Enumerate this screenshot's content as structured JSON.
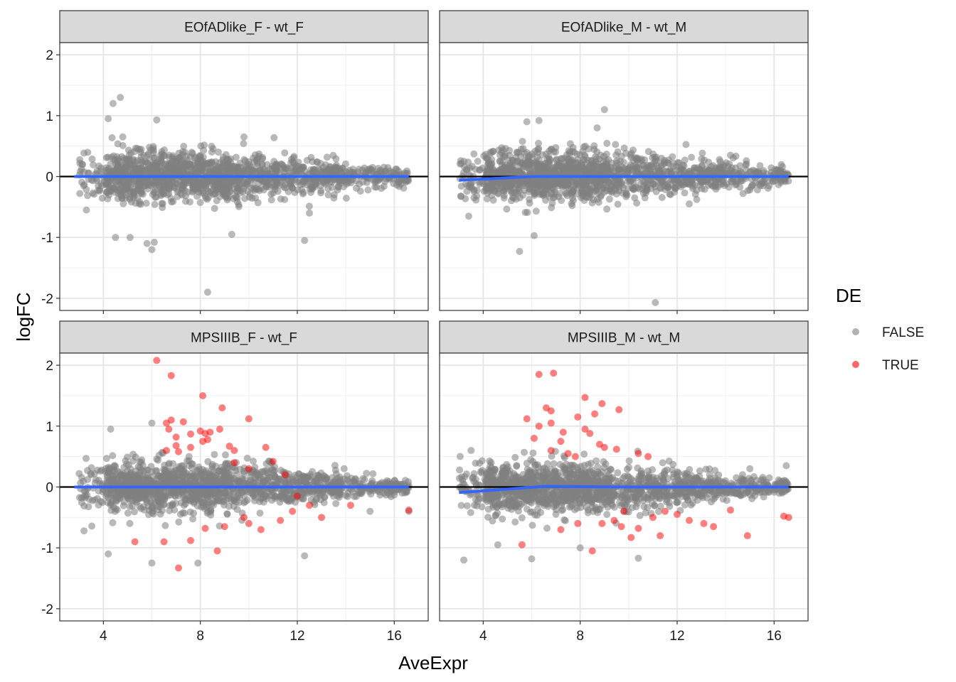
{
  "chart_data": {
    "type": "scatter",
    "layout": "facet-grid-2x2",
    "xlabel": "AveExpr",
    "ylabel": "logFC",
    "xlim": [
      2.2,
      17.4
    ],
    "ylim": [
      -2.2,
      2.2
    ],
    "x_ticks": [
      4,
      8,
      12,
      16
    ],
    "y_ticks": [
      -2,
      -1,
      0,
      1,
      2
    ],
    "x_tick_labels": [
      "4",
      "8",
      "12",
      "16"
    ],
    "y_tick_labels": [
      "-2",
      "-1",
      "0",
      "1",
      "2"
    ],
    "hline": 0,
    "smooth_color": "#3366ff",
    "legend": {
      "title": "DE",
      "entries": [
        {
          "label": "FALSE",
          "color": "#7f7f7f"
        },
        {
          "label": "TRUE",
          "color": "#ff0000"
        }
      ]
    },
    "panels": [
      {
        "title": "EOfADlike_F - wt_F",
        "cloud_seed": 11,
        "smooth": [
          [
            2.8,
            0.0
          ],
          [
            6,
            0.0
          ],
          [
            10,
            0.0
          ],
          [
            14,
            0.0
          ],
          [
            16.6,
            0.0
          ]
        ],
        "de_points": [],
        "outliers": [
          [
            4.7,
            1.3
          ],
          [
            4.4,
            1.2
          ],
          [
            4.2,
            0.95
          ],
          [
            6.2,
            0.93
          ],
          [
            4.8,
            0.65
          ],
          [
            9.8,
            0.65
          ],
          [
            3.1,
            0.12
          ],
          [
            3.3,
            -0.55
          ],
          [
            4.5,
            -1.0
          ],
          [
            5.1,
            -1.0
          ],
          [
            5.8,
            -1.1
          ],
          [
            6.0,
            -1.2
          ],
          [
            6.1,
            -1.08
          ],
          [
            8.3,
            -1.9
          ],
          [
            12.3,
            -1.05
          ],
          [
            9.3,
            -0.95
          ],
          [
            12.5,
            -0.6
          ],
          [
            16.5,
            -0.05
          ]
        ]
      },
      {
        "title": "EOfADlike_M - wt_M",
        "cloud_seed": 23,
        "smooth": [
          [
            3.0,
            -0.06
          ],
          [
            4.5,
            -0.03
          ],
          [
            6,
            0.0
          ],
          [
            10,
            0.0
          ],
          [
            14,
            0.0
          ],
          [
            16.6,
            0.0
          ]
        ],
        "de_points": [],
        "outliers": [
          [
            9.0,
            1.1
          ],
          [
            6.3,
            0.92
          ],
          [
            5.8,
            0.9
          ],
          [
            8.7,
            0.8
          ],
          [
            3.2,
            0.25
          ],
          [
            3.4,
            -0.65
          ],
          [
            5.5,
            -1.23
          ],
          [
            6.1,
            -0.97
          ],
          [
            11.1,
            -2.07
          ],
          [
            14.2,
            0.35
          ],
          [
            12.5,
            -0.45
          ],
          [
            16.3,
            0.05
          ],
          [
            15.0,
            -0.22
          ]
        ]
      },
      {
        "title": "MPSIIIB_F - wt_F",
        "cloud_seed": 37,
        "smooth": [
          [
            2.8,
            0.0
          ],
          [
            6,
            0.0
          ],
          [
            10,
            0.0
          ],
          [
            14,
            0.0
          ],
          [
            16.6,
            0.0
          ]
        ],
        "de_points": [
          [
            6.2,
            2.08
          ],
          [
            6.8,
            1.83
          ],
          [
            8.1,
            1.5
          ],
          [
            8.9,
            1.3
          ],
          [
            10.0,
            1.12
          ],
          [
            6.6,
            1.05
          ],
          [
            6.8,
            1.1
          ],
          [
            7.3,
            1.07
          ],
          [
            6.7,
            0.95
          ],
          [
            7.0,
            0.82
          ],
          [
            7.6,
            0.87
          ],
          [
            8.0,
            0.92
          ],
          [
            8.2,
            0.88
          ],
          [
            8.4,
            0.9
          ],
          [
            8.8,
            0.95
          ],
          [
            8.1,
            0.75
          ],
          [
            8.3,
            0.78
          ],
          [
            7.0,
            0.68
          ],
          [
            7.6,
            0.65
          ],
          [
            9.2,
            0.67
          ],
          [
            9.4,
            0.6
          ],
          [
            10.7,
            0.65
          ],
          [
            6.6,
            0.6
          ],
          [
            7.1,
            0.58
          ],
          [
            9.4,
            0.4
          ],
          [
            11.0,
            0.42
          ],
          [
            10.0,
            0.3
          ],
          [
            11.5,
            0.2
          ],
          [
            12.0,
            -0.15
          ],
          [
            12.5,
            -0.3
          ],
          [
            13.0,
            -0.5
          ],
          [
            14.2,
            -0.3
          ],
          [
            16.6,
            -0.38
          ],
          [
            8.7,
            -1.05
          ],
          [
            8.2,
            -0.68
          ],
          [
            9.0,
            -0.65
          ],
          [
            7.1,
            -1.33
          ],
          [
            7.6,
            -0.88
          ],
          [
            10.0,
            -0.6
          ],
          [
            10.5,
            -0.7
          ],
          [
            11.3,
            -0.55
          ],
          [
            5.3,
            -0.9
          ],
          [
            6.5,
            -0.9
          ],
          [
            9.8,
            -0.5
          ],
          [
            11.8,
            -0.4
          ]
        ],
        "outliers": [
          [
            6.0,
            1.05
          ],
          [
            4.3,
            0.95
          ],
          [
            6.0,
            -1.25
          ],
          [
            4.2,
            -1.1
          ],
          [
            7.9,
            -1.25
          ],
          [
            12.3,
            -1.13
          ],
          [
            3.0,
            0.22
          ],
          [
            3.2,
            -0.72
          ],
          [
            16.6,
            -0.4
          ],
          [
            15.0,
            -0.4
          ]
        ]
      },
      {
        "title": "MPSIIIB_M - wt_M",
        "cloud_seed": 53,
        "smooth": [
          [
            3.0,
            -0.09
          ],
          [
            4.5,
            -0.05
          ],
          [
            6.5,
            0.01
          ],
          [
            10,
            0.0
          ],
          [
            14,
            0.0
          ],
          [
            16.6,
            0.0
          ]
        ],
        "de_points": [
          [
            6.3,
            1.85
          ],
          [
            6.9,
            1.87
          ],
          [
            8.2,
            1.47
          ],
          [
            8.9,
            1.37
          ],
          [
            9.6,
            1.27
          ],
          [
            6.6,
            1.3
          ],
          [
            6.8,
            1.25
          ],
          [
            5.8,
            1.12
          ],
          [
            7.9,
            1.15
          ],
          [
            8.6,
            1.2
          ],
          [
            6.3,
            1.0
          ],
          [
            6.8,
            1.05
          ],
          [
            7.3,
            0.9
          ],
          [
            8.2,
            0.95
          ],
          [
            8.4,
            0.88
          ],
          [
            6.1,
            0.8
          ],
          [
            7.2,
            0.75
          ],
          [
            8.8,
            0.7
          ],
          [
            9.5,
            0.62
          ],
          [
            10.4,
            0.55
          ],
          [
            6.8,
            0.6
          ],
          [
            7.5,
            0.55
          ],
          [
            7.8,
            0.5
          ],
          [
            10.8,
            0.5
          ],
          [
            9.0,
            0.65
          ],
          [
            11.0,
            -0.5
          ],
          [
            11.5,
            -0.4
          ],
          [
            12.5,
            -0.55
          ],
          [
            13.1,
            -0.6
          ],
          [
            14.2,
            -0.38
          ],
          [
            14.9,
            -0.8
          ],
          [
            16.4,
            -0.48
          ],
          [
            16.6,
            -0.5
          ],
          [
            5.6,
            -0.95
          ],
          [
            8.5,
            -1.05
          ],
          [
            10.1,
            -0.83
          ],
          [
            9.7,
            -0.65
          ],
          [
            8.9,
            -0.6
          ],
          [
            7.9,
            -0.6
          ],
          [
            7.2,
            -0.7
          ],
          [
            9.4,
            -0.55
          ],
          [
            10.4,
            -0.68
          ],
          [
            11.3,
            -0.8
          ],
          [
            9.8,
            -0.4
          ],
          [
            12.0,
            -0.45
          ],
          [
            13.5,
            -0.65
          ]
        ],
        "outliers": [
          [
            3.2,
            -1.2
          ],
          [
            6.0,
            -1.18
          ],
          [
            10.4,
            -1.17
          ],
          [
            4.6,
            -0.95
          ],
          [
            3.5,
            0.6
          ],
          [
            16.5,
            0.35
          ],
          [
            15.0,
            0.3
          ],
          [
            8.0,
            -1.0
          ]
        ]
      }
    ]
  }
}
